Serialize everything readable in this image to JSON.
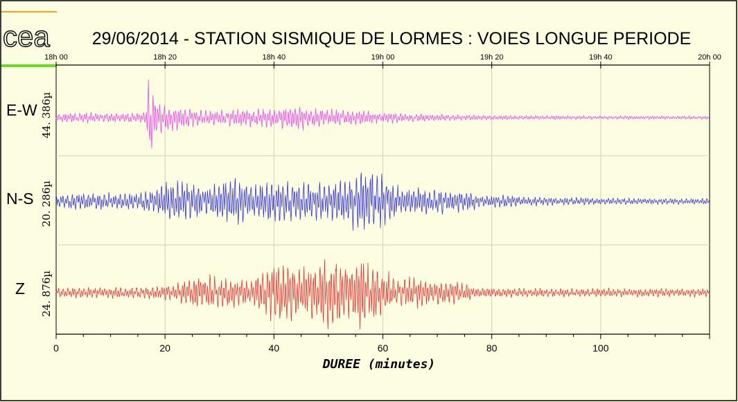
{
  "header": {
    "logo_text": "cea",
    "title": "29/06/2014  -  STATION SISMIQUE DE LORMES : VOIES LONGUE PERIODE"
  },
  "colors": {
    "background": "#fdfde2",
    "ew_trace": "#ee44ee",
    "ns_trace": "#3333dd",
    "z_trace": "#e83333",
    "logo_orange": "#f0a020",
    "logo_green": "#66dd22"
  },
  "chart_data": {
    "type": "line",
    "top_axis_ticks": [
      "18h 00",
      "18h 20",
      "18h 40",
      "19h 00",
      "19h 20",
      "19h 40",
      "20h 00"
    ],
    "xlabel": "DUREE (minutes)",
    "xlim": [
      0,
      120
    ],
    "xticks": [
      0,
      20,
      40,
      60,
      80,
      100
    ],
    "grid": true,
    "series": [
      {
        "name": "E-W",
        "amplitude_label": "44. 386µ",
        "envelope": [
          [
            0,
            0.12
          ],
          [
            5,
            0.14
          ],
          [
            10,
            0.12
          ],
          [
            15,
            0.14
          ],
          [
            16.5,
            0.2
          ],
          [
            17,
            1.0
          ],
          [
            17.5,
            0.9
          ],
          [
            18.5,
            0.5
          ],
          [
            20,
            0.38
          ],
          [
            23,
            0.3
          ],
          [
            26,
            0.22
          ],
          [
            30,
            0.2
          ],
          [
            35,
            0.25
          ],
          [
            40,
            0.25
          ],
          [
            45,
            0.35
          ],
          [
            48,
            0.25
          ],
          [
            55,
            0.2
          ],
          [
            60,
            0.15
          ],
          [
            65,
            0.12
          ],
          [
            70,
            0.1
          ],
          [
            77,
            0.07
          ],
          [
            85,
            0.06
          ],
          [
            100,
            0.05
          ],
          [
            120,
            0.05
          ]
        ]
      },
      {
        "name": "N-S",
        "amplitude_label": "20. 286µ",
        "envelope": [
          [
            0,
            0.18
          ],
          [
            8,
            0.2
          ],
          [
            15,
            0.2
          ],
          [
            18,
            0.35
          ],
          [
            20,
            0.45
          ],
          [
            25,
            0.5
          ],
          [
            28,
            0.35
          ],
          [
            32,
            0.65
          ],
          [
            33,
            0.6
          ],
          [
            35,
            0.4
          ],
          [
            38,
            0.45
          ],
          [
            40,
            0.5
          ],
          [
            45,
            0.45
          ],
          [
            50,
            0.45
          ],
          [
            54,
            0.5
          ],
          [
            56,
            0.95
          ],
          [
            57,
            0.7
          ],
          [
            59,
            0.75
          ],
          [
            62,
            0.4
          ],
          [
            66,
            0.3
          ],
          [
            70,
            0.3
          ],
          [
            76,
            0.25
          ],
          [
            78,
            0.12
          ],
          [
            82,
            0.15
          ],
          [
            85,
            0.12
          ],
          [
            90,
            0.1
          ],
          [
            100,
            0.08
          ],
          [
            120,
            0.07
          ]
        ]
      },
      {
        "name": "Z",
        "amplitude_label": "24. 876µ",
        "envelope": [
          [
            0,
            0.12
          ],
          [
            10,
            0.12
          ],
          [
            18,
            0.14
          ],
          [
            22,
            0.2
          ],
          [
            26,
            0.4
          ],
          [
            30,
            0.35
          ],
          [
            36,
            0.3
          ],
          [
            38,
            0.5
          ],
          [
            40,
            0.7
          ],
          [
            42,
            0.65
          ],
          [
            45,
            0.55
          ],
          [
            48,
            0.7
          ],
          [
            51,
            0.85
          ],
          [
            53,
            0.7
          ],
          [
            56,
            0.9
          ],
          [
            58,
            0.75
          ],
          [
            60,
            0.5
          ],
          [
            63,
            0.35
          ],
          [
            67,
            0.35
          ],
          [
            70,
            0.25
          ],
          [
            73,
            0.3
          ],
          [
            77,
            0.12
          ],
          [
            85,
            0.1
          ],
          [
            100,
            0.1
          ],
          [
            120,
            0.1
          ]
        ]
      }
    ]
  }
}
